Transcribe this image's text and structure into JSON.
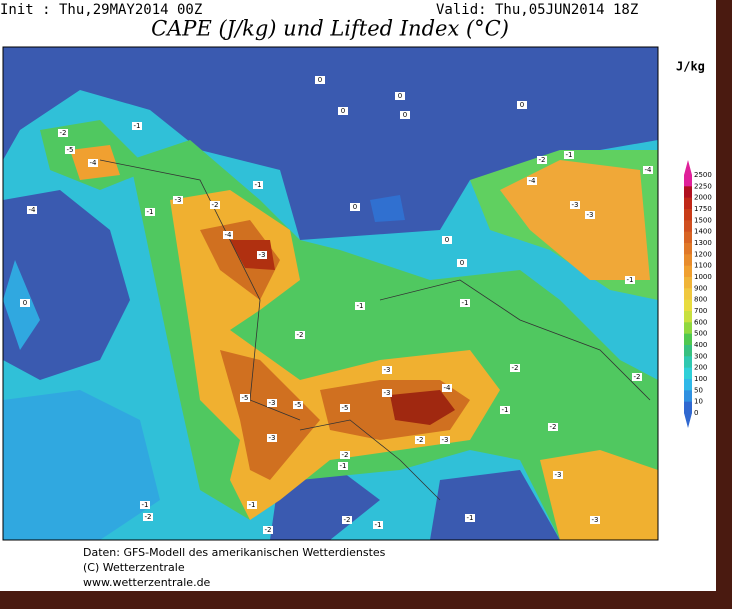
{
  "header": {
    "init": "Init : Thu,29MAY2014 00Z",
    "valid": "Valid: Thu,05JUN2014 18Z",
    "title": "CAPE (J/kg) und Lifted Index (°C)"
  },
  "colorbar": {
    "unit": "J/kg",
    "ticks": [
      2500,
      2250,
      2000,
      1750,
      1500,
      1400,
      1300,
      1200,
      1100,
      1000,
      900,
      800,
      700,
      600,
      500,
      400,
      300,
      200,
      100,
      50,
      10,
      0
    ],
    "colors": [
      "#e0209a",
      "#b01020",
      "#c02818",
      "#c83c18",
      "#d05020",
      "#d86424",
      "#e07828",
      "#e88c2c",
      "#f0a030",
      "#f0b438",
      "#f0c840",
      "#e8dc40",
      "#c8e040",
      "#90d840",
      "#50c850",
      "#38c080",
      "#30c8b0",
      "#30d0d8",
      "#30b8e8",
      "#3090e0",
      "#3068d0"
    ]
  },
  "map": {
    "labels": [
      "-2",
      "-5",
      "-4",
      "-1",
      "0",
      "0",
      "0",
      "0",
      "0",
      "-1",
      "-2",
      "-3",
      "-1",
      "-4",
      "-4",
      "-3",
      "0",
      "0",
      "0",
      "-1",
      "-2",
      "-1",
      "-4",
      "-2",
      "-1",
      "-3",
      "-3",
      "-4",
      "-1",
      "-2",
      "-2",
      "-1",
      "-2",
      "-3",
      "-3",
      "-5",
      "-3",
      "-5",
      "-3",
      "-4",
      "-3",
      "-5",
      "-2",
      "-3",
      "-3",
      "-2",
      "-1",
      "-1",
      "-2",
      "-2",
      "-1",
      "-2",
      "-1",
      "-1",
      "0"
    ]
  },
  "footer": {
    "lines": [
      "Daten: GFS-Modell des amerikanischen Wetterdienstes",
      "(C) Wetterzentrale",
      "www.wetterzentrale.de"
    ]
  }
}
